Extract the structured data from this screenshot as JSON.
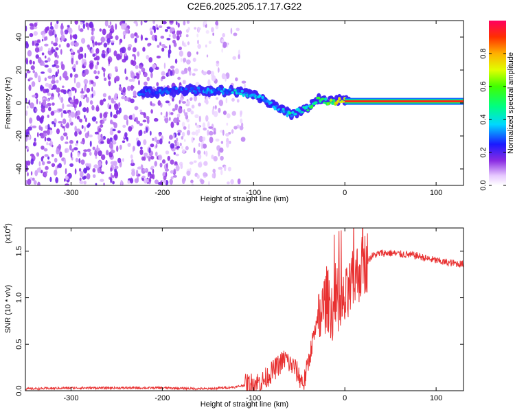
{
  "title": "C2E6.2025.205.17.17.G22",
  "chart_data": [
    {
      "type": "heatmap",
      "xlabel": "Height of straight line (km)",
      "ylabel": "Frequency (Hz)",
      "xlim": [
        -350,
        130
      ],
      "ylim": [
        -50,
        50
      ],
      "xticks": [
        -300,
        -200,
        -100,
        0,
        100
      ],
      "yticks": [
        -40,
        -20,
        0,
        20,
        40
      ],
      "colorbar": {
        "label": "Normalized spectral amplitude",
        "range": [
          0,
          1
        ],
        "ticks": [
          0.0,
          0.2,
          0.4,
          0.6,
          0.8
        ],
        "tick_labels": [
          "0.0",
          "0.2",
          "0.4",
          "0.6",
          "0.8"
        ],
        "colormap": "rainbow"
      },
      "ridge": {
        "x": [
          -225,
          -180,
          -160,
          -140,
          -120,
          -100,
          -90,
          -80,
          -70,
          -60,
          -50,
          -40,
          -30,
          -20,
          -10,
          0,
          10,
          50,
          100,
          130
        ],
        "y": [
          6,
          8,
          8,
          7,
          7,
          5,
          2,
          -1,
          -4,
          -7,
          -5,
          -3,
          2,
          1,
          1,
          2,
          1,
          1,
          1,
          1
        ],
        "amplitude": [
          0.3,
          0.3,
          0.3,
          0.35,
          0.4,
          0.4,
          0.35,
          0.35,
          0.35,
          0.45,
          0.45,
          0.5,
          0.55,
          0.6,
          0.7,
          0.8,
          0.95,
          0.95,
          0.95,
          0.95
        ]
      },
      "noise_region": [
        -350,
        -120
      ]
    },
    {
      "type": "line",
      "xlabel": "Height of straight line (km)",
      "ylabel": "SNR (10 * v/v)",
      "y_multiplier": "(x10",
      "y_exponent": "4",
      "y_multiplier_close": ")",
      "xlim": [
        -350,
        130
      ],
      "ylim": [
        0,
        1.75
      ],
      "xticks": [
        -300,
        -200,
        -100,
        0,
        100
      ],
      "yticks": [
        0.0,
        0.5,
        1.0,
        1.5
      ],
      "ytick_labels": [
        "0.0",
        "0.5",
        "1.0",
        "1.5"
      ],
      "color": "#e83030",
      "series": [
        {
          "x": [
            -350,
            -300,
            -250,
            -200,
            -150,
            -120,
            -100,
            -90,
            -80,
            -70,
            -65,
            -60,
            -55,
            -50,
            -45,
            -40,
            -35,
            -30,
            -25,
            -20,
            -15,
            -10,
            -5,
            0,
            5,
            10,
            20,
            30,
            40,
            50,
            60,
            70,
            80,
            90,
            100,
            110,
            120,
            130
          ],
          "values": [
            0.02,
            0.03,
            0.03,
            0.03,
            0.02,
            0.04,
            0.08,
            0.1,
            0.2,
            0.3,
            0.35,
            0.28,
            0.25,
            0.15,
            0.08,
            0.3,
            0.55,
            0.7,
            0.85,
            1.0,
            0.9,
            0.8,
            0.85,
            0.95,
            1.05,
            1.2,
            1.35,
            1.45,
            1.48,
            1.48,
            1.47,
            1.46,
            1.45,
            1.42,
            1.4,
            1.38,
            1.37,
            1.36
          ]
        }
      ]
    }
  ]
}
